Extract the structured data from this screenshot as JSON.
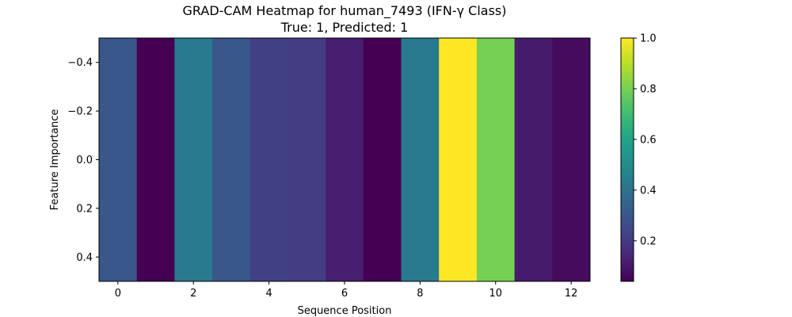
{
  "chart_data": {
    "type": "heatmap",
    "title": "GRAD-CAM Heatmap for human_7493 (IFN-γ Class)",
    "subtitle": "True: 1, Predicted: 1",
    "xlabel": "Sequence Position",
    "ylabel": "Feature Importance",
    "x": [
      0,
      1,
      2,
      3,
      4,
      5,
      6,
      7,
      8,
      9,
      10,
      11,
      12
    ],
    "values": [
      0.3,
      0.04,
      0.43,
      0.3,
      0.22,
      0.21,
      0.12,
      0.04,
      0.43,
      1.0,
      0.8,
      0.11,
      0.07
    ],
    "xlim": [
      -0.5,
      12.5
    ],
    "ylim": [
      -0.5,
      0.5
    ],
    "xticks": [
      0,
      2,
      4,
      6,
      8,
      10,
      12
    ],
    "yticks": [
      -0.4,
      -0.2,
      0.0,
      0.2,
      0.4
    ],
    "colorbar": {
      "range": [
        0.04,
        1.0
      ],
      "ticks": [
        0.2,
        0.4,
        0.6,
        0.8,
        1.0
      ]
    },
    "colormap": "viridis"
  }
}
